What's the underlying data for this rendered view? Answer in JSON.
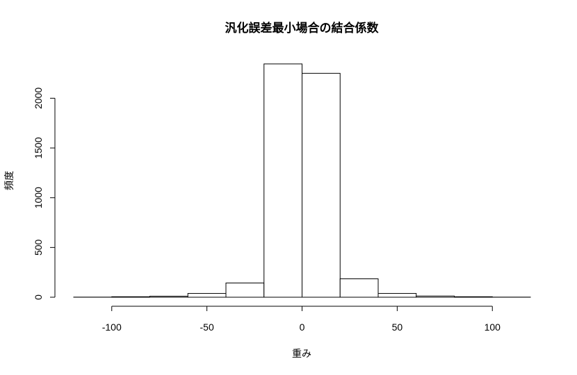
{
  "chart_data": {
    "type": "bar",
    "title": "汎化誤差最小場合の結合係数",
    "xlabel": "重み",
    "ylabel": "頻度",
    "bin_edges": [
      -120,
      -100,
      -80,
      -60,
      -40,
      -20,
      0,
      20,
      40,
      60,
      80,
      100,
      120
    ],
    "values": [
      1,
      5,
      10,
      38,
      143,
      2345,
      2250,
      185,
      38,
      12,
      5,
      1
    ],
    "xlim": [
      -120,
      120
    ],
    "ylim": [
      0,
      2345
    ],
    "x_ticks": [
      -100,
      -50,
      0,
      50,
      100
    ],
    "y_ticks": [
      0,
      500,
      1000,
      1500,
      2000
    ],
    "x_tick_labels": [
      "-100",
      "-50",
      "0",
      "50",
      "100"
    ],
    "y_tick_labels": [
      "0",
      "500",
      "1000",
      "1500",
      "2000"
    ],
    "grid": false,
    "legend": "none"
  }
}
